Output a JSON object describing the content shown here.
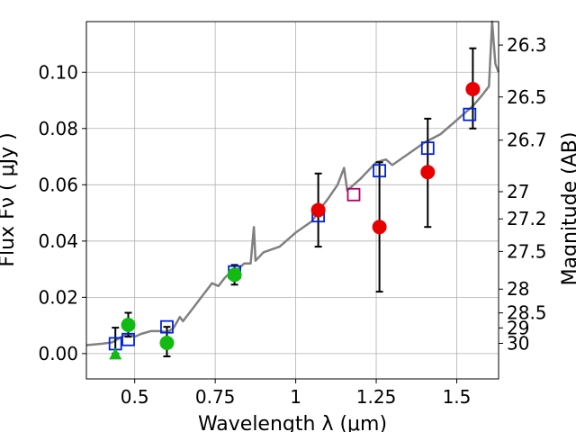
{
  "chart_data": {
    "type": "scatter",
    "xlabel": "Wavelength  λ (μm)",
    "ylabel": "Flux  Fν  ( μJy )",
    "y2label": "Magnitude (AB)",
    "xlim": [
      0.35,
      1.63
    ],
    "ylim": [
      -0.009,
      0.118
    ],
    "grid": true,
    "x_ticks": [
      {
        "value": 0.5,
        "label": "0.5"
      },
      {
        "value": 0.75,
        "label": "0.75"
      },
      {
        "value": 1.0,
        "label": "1"
      },
      {
        "value": 1.25,
        "label": "1.25"
      },
      {
        "value": 1.5,
        "label": "1.5"
      }
    ],
    "y_ticks": [
      {
        "value": 0.0,
        "label": "0.00"
      },
      {
        "value": 0.02,
        "label": "0.02"
      },
      {
        "value": 0.04,
        "label": "0.04"
      },
      {
        "value": 0.06,
        "label": "0.06"
      },
      {
        "value": 0.08,
        "label": "0.08"
      },
      {
        "value": 0.1,
        "label": "0.10"
      }
    ],
    "y2_ticks": [
      {
        "value": 26.3,
        "label": "26.3"
      },
      {
        "value": 26.5,
        "label": "26.5"
      },
      {
        "value": 26.7,
        "label": "26.7"
      },
      {
        "value": 27.0,
        "label": "27"
      },
      {
        "value": 27.2,
        "label": "27.2"
      },
      {
        "value": 27.5,
        "label": "27.5"
      },
      {
        "value": 28.0,
        "label": "28"
      },
      {
        "value": 28.5,
        "label": "28.5"
      },
      {
        "value": 29.0,
        "label": "29"
      },
      {
        "value": 30.0,
        "label": "30"
      }
    ],
    "series": [
      {
        "marker": "line",
        "color": "#808080",
        "points": [
          [
            0.35,
            0.003
          ],
          [
            0.4,
            0.0035
          ],
          [
            0.43,
            0.004
          ],
          [
            0.46,
            0.006
          ],
          [
            0.48,
            0.007
          ],
          [
            0.5,
            0.006
          ],
          [
            0.52,
            0.007
          ],
          [
            0.55,
            0.008
          ],
          [
            0.58,
            0.008
          ],
          [
            0.6,
            0.0075
          ],
          [
            0.62,
            0.009
          ],
          [
            0.64,
            0.013
          ],
          [
            0.65,
            0.0115
          ],
          [
            0.68,
            0.016
          ],
          [
            0.7,
            0.019
          ],
          [
            0.72,
            0.022
          ],
          [
            0.74,
            0.025
          ],
          [
            0.76,
            0.024
          ],
          [
            0.78,
            0.027
          ],
          [
            0.8,
            0.029
          ],
          [
            0.82,
            0.03
          ],
          [
            0.84,
            0.032
          ],
          [
            0.86,
            0.032
          ],
          [
            0.87,
            0.045
          ],
          [
            0.875,
            0.033
          ],
          [
            0.9,
            0.036
          ],
          [
            0.95,
            0.038
          ],
          [
            1.0,
            0.043
          ],
          [
            1.05,
            0.047
          ],
          [
            1.08,
            0.052
          ],
          [
            1.1,
            0.055
          ],
          [
            1.13,
            0.06
          ],
          [
            1.15,
            0.066
          ],
          [
            1.16,
            0.058
          ],
          [
            1.2,
            0.062
          ],
          [
            1.25,
            0.068
          ],
          [
            1.28,
            0.069
          ],
          [
            1.3,
            0.067
          ],
          [
            1.35,
            0.071
          ],
          [
            1.4,
            0.075
          ],
          [
            1.45,
            0.078
          ],
          [
            1.5,
            0.083
          ],
          [
            1.55,
            0.088
          ],
          [
            1.58,
            0.092
          ],
          [
            1.6,
            0.095
          ],
          [
            1.61,
            0.118
          ],
          [
            1.62,
            0.103
          ],
          [
            1.63,
            0.1
          ]
        ]
      },
      {
        "marker": "open-square",
        "color": "#0022dd",
        "points": [
          [
            0.44,
            0.0035
          ],
          [
            0.48,
            0.005
          ],
          [
            0.6,
            0.0095
          ],
          [
            0.81,
            0.029
          ],
          [
            1.07,
            0.049
          ],
          [
            1.26,
            0.065
          ],
          [
            1.41,
            0.073
          ],
          [
            1.54,
            0.085
          ]
        ]
      },
      {
        "marker": "open-square",
        "color": "#aa0066",
        "points": [
          [
            1.18,
            0.0565
          ]
        ]
      },
      {
        "marker": "filled-circle",
        "color": "#e80000",
        "points": [
          [
            1.07,
            0.051
          ],
          [
            1.26,
            0.045
          ],
          [
            1.41,
            0.0645
          ],
          [
            1.55,
            0.094
          ]
        ]
      },
      {
        "marker": "filled-circle",
        "color": "#11bb11",
        "points": [
          [
            0.48,
            0.0102
          ],
          [
            0.6,
            0.0038
          ],
          [
            0.81,
            0.028
          ]
        ]
      },
      {
        "marker": "filled-triangle",
        "color": "#11bb11",
        "points": [
          [
            0.44,
            -0.0005
          ]
        ]
      }
    ],
    "error_bars": [
      {
        "x": 0.44,
        "low": 0.0,
        "high": 0.0092
      },
      {
        "x": 0.48,
        "low": 0.006,
        "high": 0.0145
      },
      {
        "x": 0.6,
        "low": -0.001,
        "high": 0.0095
      },
      {
        "x": 0.81,
        "low": 0.0245,
        "high": 0.0315
      },
      {
        "x": 1.07,
        "low": 0.038,
        "high": 0.064
      },
      {
        "x": 1.26,
        "low": 0.022,
        "high": 0.068
      },
      {
        "x": 1.41,
        "low": 0.045,
        "high": 0.0835
      },
      {
        "x": 1.55,
        "low": 0.08,
        "high": 0.1085
      }
    ]
  }
}
